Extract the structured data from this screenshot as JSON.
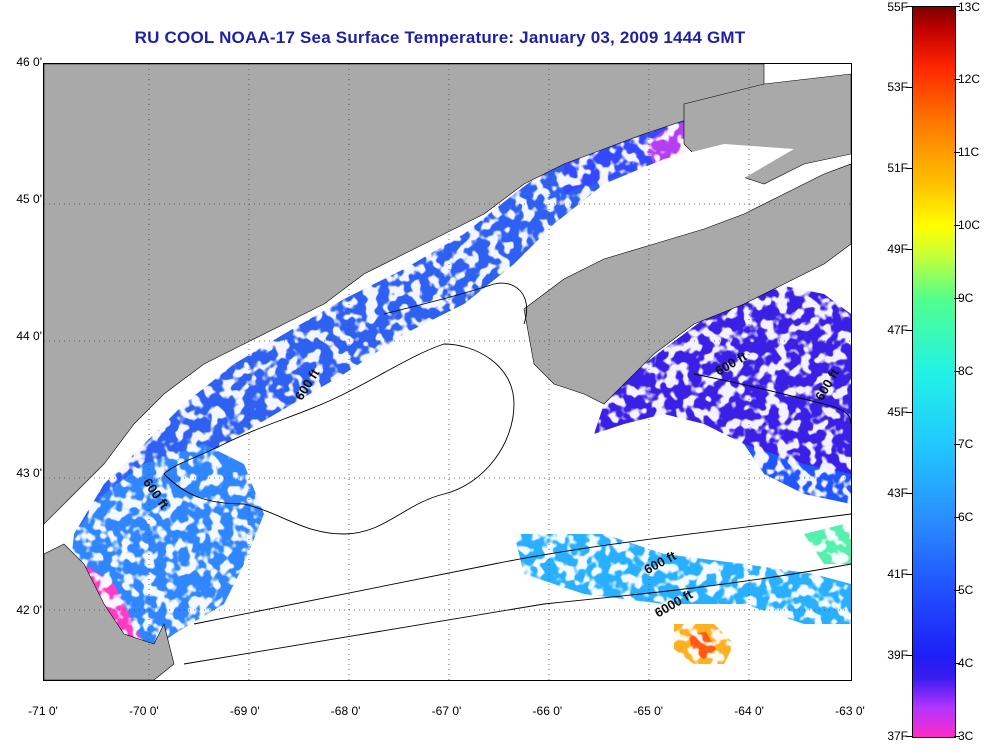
{
  "title": "RU COOL  NOAA-17  Sea Surface Temperature:  January 03, 2009 1444 GMT",
  "map": {
    "lon_range": [
      -71,
      -63
    ],
    "lat_range": [
      41.5,
      46
    ],
    "lat_ticks": [
      {
        "value": 46,
        "label": "46 0'"
      },
      {
        "value": 45,
        "label": "45 0'"
      },
      {
        "value": 44,
        "label": "44 0'"
      },
      {
        "value": 43,
        "label": "43 0'"
      },
      {
        "value": 42,
        "label": "42 0'"
      }
    ],
    "lon_ticks": [
      {
        "value": -71,
        "label": "-71 0'"
      },
      {
        "value": -70,
        "label": "-70 0'"
      },
      {
        "value": -69,
        "label": "-69 0'"
      },
      {
        "value": -68,
        "label": "-68 0'"
      },
      {
        "value": -67,
        "label": "-67 0'"
      },
      {
        "value": -66,
        "label": "-66 0'"
      },
      {
        "value": -65,
        "label": "-65 0'"
      },
      {
        "value": -64,
        "label": "-64 0'"
      },
      {
        "value": -63,
        "label": "-63 0'"
      }
    ],
    "contour_labels": [
      {
        "text": "600 ft",
        "lon": -68.35,
        "lat": 43.65,
        "rotation": -58
      },
      {
        "text": "600 ft",
        "lon": -69.85,
        "lat": 42.85,
        "rotation": 55
      },
      {
        "text": "600 ft",
        "lon": -64.15,
        "lat": 43.8,
        "rotation": -30
      },
      {
        "text": "600 ft",
        "lon": -63.2,
        "lat": 43.65,
        "rotation": -60
      },
      {
        "text": "600 ft",
        "lon": -64.85,
        "lat": 42.35,
        "rotation": -28
      },
      {
        "text": "6000 ft",
        "lon": -64.75,
        "lat": 42.05,
        "rotation": -30
      }
    ],
    "colors": {
      "land": "#a9a9a9",
      "cloud": "#ffffff",
      "grid": "#555555"
    }
  },
  "colorbar": {
    "fahrenheit_labels": [
      "55F",
      "53F",
      "51F",
      "49F",
      "47F",
      "45F",
      "43F",
      "41F",
      "39F",
      "37F"
    ],
    "celsius_labels": [
      "13C",
      "12C",
      "11C",
      "10C",
      "9C",
      "8C",
      "7C",
      "6C",
      "5C",
      "4C",
      "3C"
    ],
    "f_range": [
      37,
      55
    ],
    "c_range": [
      3,
      13
    ]
  }
}
